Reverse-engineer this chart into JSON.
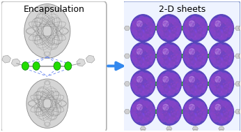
{
  "left_panel": {
    "title": "Encapsulation",
    "title_fontsize": 9,
    "bg_color": "#ffffff",
    "border_color": "#b0b0b0",
    "border_lw": 1.2,
    "fullerene_face": "#d5d5d5",
    "fullerene_edge": "#888888",
    "fullerene_dark": "#aaaaaa",
    "sulfur_color": "#22dd00",
    "sulfur_edge": "#007700",
    "dashed_color": "#5577ee",
    "linker_color": "#999999"
  },
  "right_panel": {
    "title": "2-D sheets",
    "title_fontsize": 9,
    "bg_color": "#eef3ff",
    "border_color": "#8899cc",
    "border_lw": 1.2,
    "n_cols": 4,
    "n_rows": 4,
    "purple_dark": "#5555bb",
    "purple_mid": "#7766cc",
    "purple_light": "#9988ee",
    "pink_highlight": "#cc99dd",
    "sulfur_color": "#22dd00",
    "ligand_color": "#aaaaaa",
    "ligand_edge": "#777777"
  },
  "arrow_color": "#3388ee",
  "fig_bg": "#ffffff",
  "fig_width": 3.46,
  "fig_height": 1.89,
  "dpi": 100
}
